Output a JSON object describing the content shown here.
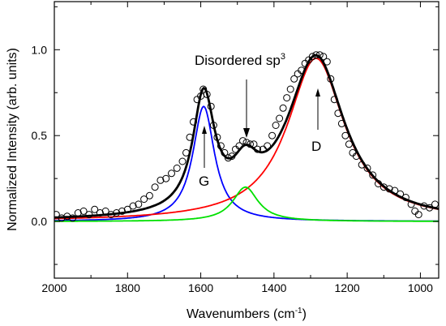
{
  "chart_data": {
    "type": "line",
    "xlabel": "Wavenumbers (cm",
    "xlabel_sup": "-1",
    "xlabel_end": ")",
    "ylabel": "Normalized Intensity (arb. units)",
    "xlim": [
      2000,
      950
    ],
    "ylim": [
      -0.33,
      1.28
    ],
    "x_ticks": [
      "2000",
      "1800",
      "1600",
      "1400",
      "1200",
      "1000"
    ],
    "y_ticks": [
      "0.0",
      "0.5",
      "1.0"
    ],
    "annotations": {
      "g": "G",
      "d": "D",
      "disordered": "Disordered sp",
      "disordered_sup": "3"
    },
    "components": [
      {
        "color": "#0000ff",
        "center": 1592,
        "amplitude": 0.67,
        "hwhm": 36
      },
      {
        "color": "#ff0000",
        "center": 1285,
        "amplitude": 0.95,
        "hwhm": 95
      },
      {
        "color": "#00e000",
        "center": 1478,
        "amplitude": 0.2,
        "hwhm": 42
      }
    ],
    "fit_color": "#000000",
    "points": [
      [
        1995,
        0.04
      ],
      [
        1980,
        0.02
      ],
      [
        1965,
        0.03
      ],
      [
        1950,
        0.02
      ],
      [
        1935,
        0.05
      ],
      [
        1920,
        0.06
      ],
      [
        1905,
        0.04
      ],
      [
        1890,
        0.07
      ],
      [
        1875,
        0.05
      ],
      [
        1860,
        0.06
      ],
      [
        1845,
        0.04
      ],
      [
        1830,
        0.05
      ],
      [
        1815,
        0.06
      ],
      [
        1800,
        0.07
      ],
      [
        1785,
        0.09
      ],
      [
        1770,
        0.1
      ],
      [
        1755,
        0.13
      ],
      [
        1740,
        0.15
      ],
      [
        1725,
        0.2
      ],
      [
        1710,
        0.24
      ],
      [
        1695,
        0.25
      ],
      [
        1680,
        0.28
      ],
      [
        1665,
        0.31
      ],
      [
        1650,
        0.35
      ],
      [
        1640,
        0.4
      ],
      [
        1630,
        0.49
      ],
      [
        1620,
        0.58
      ],
      [
        1610,
        0.71
      ],
      [
        1600,
        0.73
      ],
      [
        1593,
        0.77
      ],
      [
        1583,
        0.74
      ],
      [
        1572,
        0.67
      ],
      [
        1565,
        0.56
      ],
      [
        1555,
        0.49
      ],
      [
        1545,
        0.44
      ],
      [
        1535,
        0.4
      ],
      [
        1525,
        0.37
      ],
      [
        1515,
        0.38
      ],
      [
        1505,
        0.42
      ],
      [
        1495,
        0.44
      ],
      [
        1485,
        0.47
      ],
      [
        1475,
        0.46
      ],
      [
        1465,
        0.45
      ],
      [
        1455,
        0.45
      ],
      [
        1445,
        0.42
      ],
      [
        1430,
        0.42
      ],
      [
        1418,
        0.44
      ],
      [
        1405,
        0.5
      ],
      [
        1395,
        0.56
      ],
      [
        1385,
        0.6
      ],
      [
        1375,
        0.66
      ],
      [
        1365,
        0.72
      ],
      [
        1355,
        0.77
      ],
      [
        1345,
        0.83
      ],
      [
        1335,
        0.86
      ],
      [
        1325,
        0.88
      ],
      [
        1315,
        0.92
      ],
      [
        1305,
        0.94
      ],
      [
        1295,
        0.96
      ],
      [
        1285,
        0.97
      ],
      [
        1275,
        0.97
      ],
      [
        1265,
        0.96
      ],
      [
        1255,
        0.93
      ],
      [
        1245,
        0.83
      ],
      [
        1235,
        0.71
      ],
      [
        1225,
        0.63
      ],
      [
        1215,
        0.57
      ],
      [
        1205,
        0.5
      ],
      [
        1195,
        0.45
      ],
      [
        1185,
        0.4
      ],
      [
        1175,
        0.38
      ],
      [
        1160,
        0.33
      ],
      [
        1145,
        0.31
      ],
      [
        1130,
        0.27
      ],
      [
        1115,
        0.22
      ],
      [
        1100,
        0.2
      ],
      [
        1085,
        0.19
      ],
      [
        1070,
        0.18
      ],
      [
        1055,
        0.16
      ],
      [
        1040,
        0.14
      ],
      [
        1025,
        0.1
      ],
      [
        1015,
        0.06
      ],
      [
        1005,
        0.04
      ],
      [
        990,
        0.09
      ],
      [
        975,
        0.08
      ],
      [
        960,
        0.1
      ]
    ]
  }
}
